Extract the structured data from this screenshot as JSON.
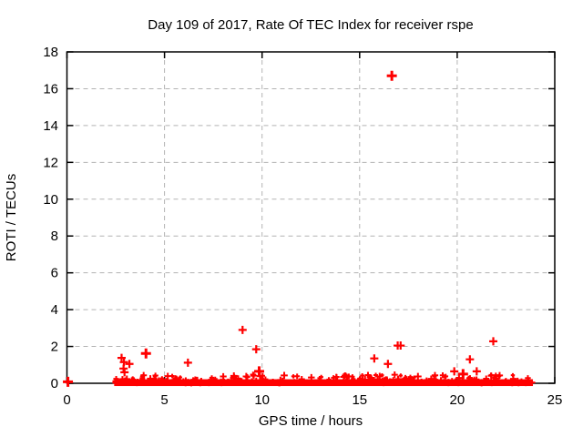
{
  "window": {
    "background_color": "#ffffff"
  },
  "chart_data": {
    "type": "scatter",
    "title": "Day 109 of 2017, Rate Of TEC Index for receiver rspe",
    "xlabel": "GPS time / hours",
    "ylabel": "ROTI / TECUs",
    "xlim": [
      0,
      25
    ],
    "ylim": [
      0,
      18
    ],
    "xticks": [
      0,
      5,
      10,
      15,
      20,
      25
    ],
    "yticks": [
      0,
      2,
      4,
      6,
      8,
      10,
      12,
      14,
      16,
      18
    ],
    "grid": true,
    "grid_style": "dashed",
    "grid_color": "#b3b3b3",
    "axis_color": "#000000",
    "marker": "plus",
    "marker_color": "#ff0000",
    "legend": "none",
    "points": [
      {
        "x": 0.05,
        "y": 0.08,
        "bold": true
      },
      {
        "x": 2.8,
        "y": 1.38
      },
      {
        "x": 2.92,
        "y": 1.15
      },
      {
        "x": 3.2,
        "y": 1.05
      },
      {
        "x": 2.9,
        "y": 0.8
      },
      {
        "x": 2.95,
        "y": 0.6
      },
      {
        "x": 4.05,
        "y": 1.62,
        "bold": true
      },
      {
        "x": 6.2,
        "y": 1.12
      },
      {
        "x": 9.0,
        "y": 2.9
      },
      {
        "x": 9.7,
        "y": 1.85
      },
      {
        "x": 9.85,
        "y": 0.65,
        "bold": true
      },
      {
        "x": 15.75,
        "y": 1.35
      },
      {
        "x": 16.45,
        "y": 1.05
      },
      {
        "x": 16.65,
        "y": 16.7,
        "bold": true
      },
      {
        "x": 16.95,
        "y": 2.05
      },
      {
        "x": 17.1,
        "y": 2.05
      },
      {
        "x": 19.85,
        "y": 0.65
      },
      {
        "x": 20.3,
        "y": 0.5,
        "bold": true
      },
      {
        "x": 20.65,
        "y": 1.3
      },
      {
        "x": 21.0,
        "y": 0.65
      },
      {
        "x": 21.85,
        "y": 2.28
      }
    ],
    "baseline_band": {
      "x_start": 2.42,
      "x_end": 23.88,
      "y_top": 0.22,
      "y_bottom": -0.15,
      "jitter_y_max": 0.45,
      "jitter_count": 340,
      "note": "dense mass of near-zero ROTI samples forming a solid red band along y=0"
    }
  }
}
